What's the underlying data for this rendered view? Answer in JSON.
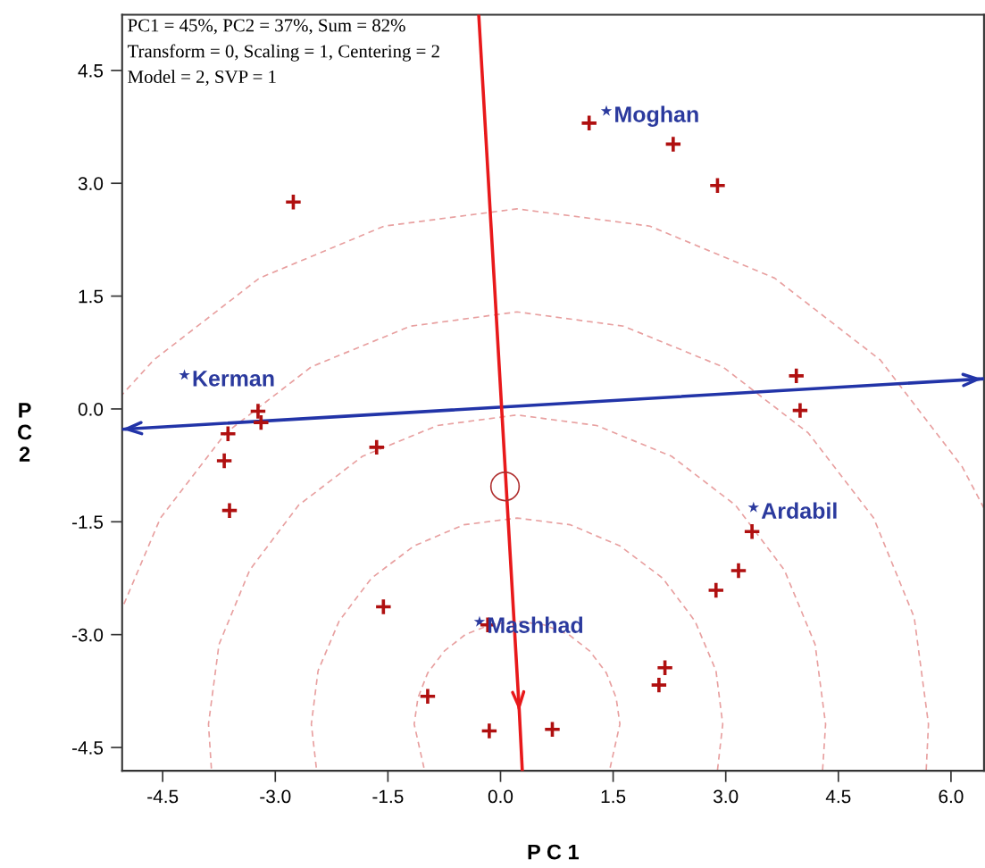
{
  "chart_data": {
    "type": "scatter",
    "xlabel": "P C 1",
    "ylabel": "P C 2",
    "xlim": [
      -5.04,
      6.44
    ],
    "ylim": [
      -4.81,
      5.24
    ],
    "xticks": [
      {
        "value": -4.5,
        "label": "-4.5"
      },
      {
        "value": -3.0,
        "label": "-3.0"
      },
      {
        "value": -1.5,
        "label": "-1.5"
      },
      {
        "value": 0.0,
        "label": "0.0"
      },
      {
        "value": 1.5,
        "label": "1.5"
      },
      {
        "value": 3.0,
        "label": "3.0"
      },
      {
        "value": 4.5,
        "label": "4.5"
      },
      {
        "value": 6.0,
        "label": "6.0"
      }
    ],
    "yticks": [
      {
        "value": -4.5,
        "label": "-4.5"
      },
      {
        "value": -3.0,
        "label": "-3.0"
      },
      {
        "value": -1.5,
        "label": "-1.5"
      },
      {
        "value": 0.0,
        "label": "0.0"
      },
      {
        "value": 1.5,
        "label": "1.5"
      },
      {
        "value": 3.0,
        "label": "3.0"
      },
      {
        "value": 4.5,
        "label": "4.5"
      }
    ],
    "grid": false,
    "legend": false,
    "annotations": [
      "PC1 = 45%, PC2 = 37%, Sum = 82%",
      "Transform = 0, Scaling = 1, Centering = 2",
      "Model = 2, SVP = 1"
    ],
    "series": [
      {
        "type": "scatter",
        "marker": "star",
        "color": "#2b3a9e",
        "x": [
          -4.21,
          1.41,
          3.37,
          -0.28
        ],
        "values": [
          0.45,
          3.96,
          -1.31,
          -2.83
        ],
        "value_labels": [
          "Kerman",
          "Moghan",
          "Ardabil",
          "Mashhad"
        ]
      },
      {
        "type": "line",
        "color": "#e8a0a0",
        "line_style": "dashed",
        "x": [
          1.46,
          1.59,
          1.54,
          1.41,
          1.19,
          0.91,
          0.58,
          0.22,
          -0.14,
          -0.47,
          -0.75,
          -0.97,
          -1.1,
          -1.15,
          -1.02
        ],
        "values": [
          -4.77,
          -4.19,
          -3.84,
          -3.51,
          -3.22,
          -3.0,
          -2.87,
          -2.82,
          -2.87,
          -3.0,
          -3.22,
          -3.51,
          -3.84,
          -4.19,
          -4.77
        ]
      },
      {
        "type": "line",
        "color": "#e8a0a0",
        "line_style": "dashed",
        "x": [
          2.89,
          2.96,
          2.87,
          2.59,
          2.16,
          1.59,
          0.93,
          0.22,
          -0.49,
          -1.15,
          -1.72,
          -2.15,
          -2.43,
          -2.52,
          -2.45
        ],
        "values": [
          -4.8,
          -4.19,
          -3.48,
          -2.82,
          -2.25,
          -1.82,
          -1.54,
          -1.45,
          -1.54,
          -1.82,
          -2.25,
          -2.82,
          -3.48,
          -4.19,
          -4.8
        ]
      },
      {
        "type": "line",
        "color": "#e8a0a0",
        "line_style": "dashed",
        "x": [
          4.29,
          4.33,
          4.19,
          3.78,
          3.13,
          2.28,
          1.28,
          0.22,
          -0.84,
          -1.84,
          -2.69,
          -3.34,
          -3.75,
          -3.89,
          -3.85
        ],
        "values": [
          -4.8,
          -4.19,
          -3.13,
          -2.14,
          -1.28,
          -0.63,
          -0.22,
          -0.08,
          -0.22,
          -0.63,
          -1.28,
          -2.14,
          -3.13,
          -4.19,
          -4.8
        ]
      },
      {
        "type": "line",
        "color": "#e8a0a0",
        "line_style": "dashed",
        "x": [
          5.67,
          5.7,
          5.51,
          4.97,
          4.1,
          2.96,
          1.64,
          0.22,
          -1.2,
          -2.52,
          -3.66,
          -4.53,
          -5.04
        ],
        "values": [
          -4.8,
          -4.19,
          -2.77,
          -1.45,
          -0.32,
          0.56,
          1.1,
          1.29,
          1.1,
          0.56,
          -0.32,
          -1.45,
          -2.65
        ]
      },
      {
        "type": "line",
        "color": "#e8a0a0",
        "line_style": "dashed",
        "x": [
          6.44,
          6.15,
          5.06,
          3.65,
          1.99,
          0.22,
          -1.55,
          -3.21,
          -4.62,
          -5.04
        ],
        "values": [
          -1.32,
          -0.77,
          0.65,
          1.74,
          2.43,
          2.66,
          2.43,
          1.74,
          0.65,
          0.19
        ]
      },
      {
        "type": "line",
        "color": "#2234a8",
        "line_style": "solid",
        "x": [
          -5.04,
          6.42
        ],
        "values": [
          -0.27,
          0.4
        ]
      },
      {
        "type": "line",
        "color": "#e8191b",
        "line_style": "solid",
        "x": [
          -0.29,
          0.25,
          0.29
        ],
        "values": [
          5.24,
          -4.02,
          -4.81
        ]
      },
      {
        "type": "scatter",
        "marker": "circle",
        "color": "#b03030",
        "x": [
          0.06
        ],
        "values": [
          -1.03
        ]
      },
      {
        "type": "scatter",
        "marker": "cross",
        "color": "#b01010",
        "x": [
          -2.76,
          1.18,
          2.3,
          2.89,
          3.94,
          3.99,
          -3.23,
          -3.19,
          -3.63,
          -3.68,
          -3.61,
          -1.65,
          -1.56,
          -0.97,
          -0.15,
          0.69,
          -0.17,
          3.35,
          3.17,
          2.87,
          2.19,
          2.11
        ],
        "values": [
          2.75,
          3.8,
          3.52,
          2.97,
          0.44,
          -0.02,
          -0.03,
          -0.18,
          -0.33,
          -0.69,
          -1.35,
          -0.51,
          -2.63,
          -3.82,
          -4.28,
          -4.26,
          -2.87,
          -1.63,
          -2.15,
          -2.41,
          -3.44,
          -3.67
        ]
      }
    ]
  }
}
